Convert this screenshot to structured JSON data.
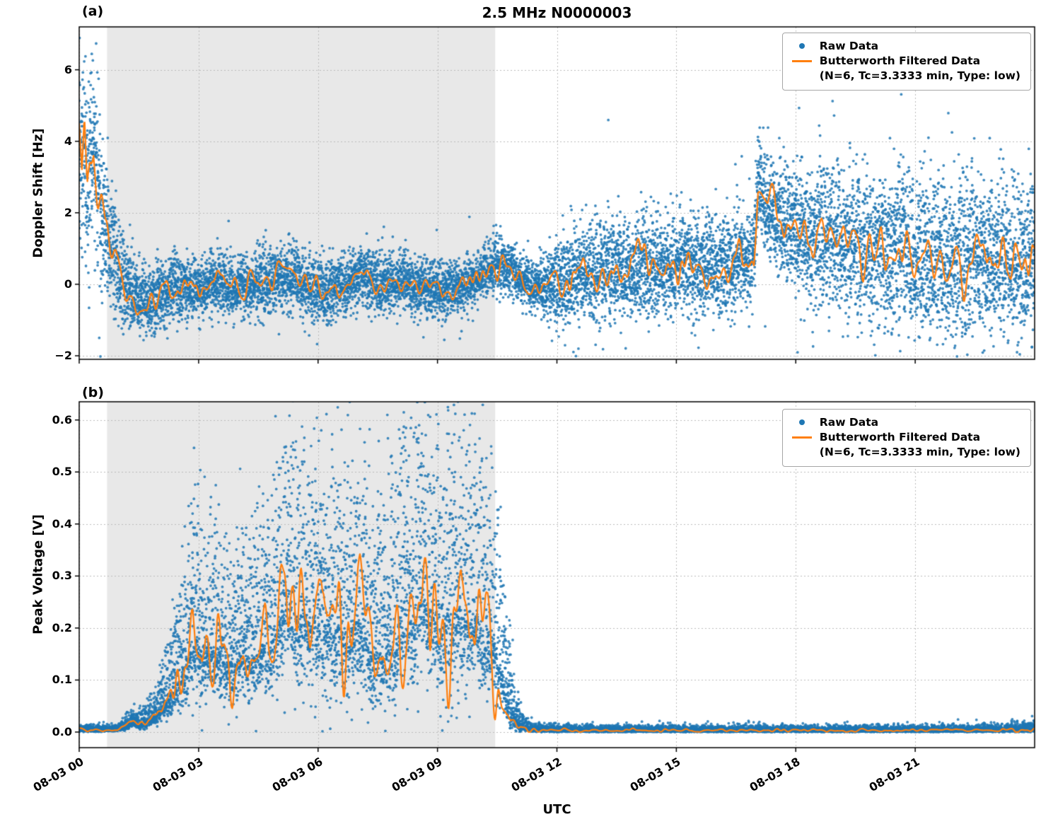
{
  "figure": {
    "title": "2.5 MHz N0000003",
    "xlabel": "UTC",
    "colors": {
      "raw": "#1f77b4",
      "filtered": "#ff7f0e",
      "shade": "#e8e8e8",
      "grid": "#bbbbbb",
      "spine": "#000000",
      "background": "#ffffff"
    },
    "legend": {
      "raw_label": "Raw Data",
      "filtered_label": "Butterworth Filtered Data",
      "filtered_sublabel": "(N=6, Tc=3.3333 min, Type: low)"
    },
    "x_axis": {
      "lim": [
        0,
        24
      ],
      "ticks": [
        0,
        3,
        6,
        9,
        12,
        15,
        18,
        21
      ],
      "tick_labels": [
        "08-03 00",
        "08-03 03",
        "08-03 06",
        "08-03 09",
        "08-03 12",
        "08-03 15",
        "08-03 18",
        "08-03 21"
      ]
    }
  },
  "chart_data": [
    {
      "type": "scatter",
      "panel_label": "(a)",
      "ylabel": "Doppler Shift [Hz]",
      "ylim": [
        -2.1,
        7.2
      ],
      "yticks": [
        -2,
        0,
        2,
        4,
        6
      ],
      "ytick_labels": [
        "−2",
        "0",
        "2",
        "4",
        "6"
      ],
      "shaded_x_range": [
        0.7,
        10.45
      ],
      "series": [
        {
          "name": "Raw Data",
          "style": "scatter"
        },
        {
          "name": "Butterworth Filtered Data (N=6, Tc=3.3333 min, Type: low)",
          "style": "line"
        }
      ],
      "n_points": 12000,
      "skew_up": 1.05,
      "skew_down": 1.0,
      "outlier_prob": 0.009,
      "outlier_scale": 2.2,
      "clip_min": null,
      "line_noise": 1.2,
      "filtered_mean_breakpoints": [
        [
          0.0,
          4.2
        ],
        [
          0.07,
          2.8
        ],
        [
          0.13,
          4.3
        ],
        [
          0.2,
          2.4
        ],
        [
          0.28,
          3.2
        ],
        [
          0.36,
          3.9
        ],
        [
          0.45,
          2.6
        ],
        [
          0.55,
          2.1
        ],
        [
          0.65,
          1.5
        ],
        [
          0.8,
          1.1
        ],
        [
          0.95,
          0.6
        ],
        [
          1.1,
          0.2
        ],
        [
          1.3,
          -0.15
        ],
        [
          1.5,
          -0.35
        ],
        [
          1.7,
          -0.5
        ],
        [
          1.9,
          -0.45
        ],
        [
          2.1,
          -0.25
        ],
        [
          2.4,
          -0.15
        ],
        [
          2.7,
          -0.1
        ],
        [
          3.0,
          -0.15
        ],
        [
          3.3,
          -0.05
        ],
        [
          3.6,
          0.0
        ],
        [
          3.9,
          -0.1
        ],
        [
          4.2,
          -0.05
        ],
        [
          4.5,
          0.05
        ],
        [
          4.8,
          0.0
        ],
        [
          5.1,
          0.15
        ],
        [
          5.35,
          0.3
        ],
        [
          5.6,
          0.05
        ],
        [
          5.85,
          -0.2
        ],
        [
          6.1,
          -0.3
        ],
        [
          6.35,
          -0.2
        ],
        [
          6.6,
          -0.05
        ],
        [
          6.85,
          0.15
        ],
        [
          7.1,
          0.25
        ],
        [
          7.35,
          0.1
        ],
        [
          7.6,
          -0.05
        ],
        [
          7.85,
          0.05
        ],
        [
          8.1,
          0.1
        ],
        [
          8.35,
          0.0
        ],
        [
          8.6,
          -0.1
        ],
        [
          8.85,
          -0.05
        ],
        [
          9.1,
          -0.2
        ],
        [
          9.35,
          -0.15
        ],
        [
          9.6,
          -0.05
        ],
        [
          9.85,
          0.05
        ],
        [
          10.1,
          0.25
        ],
        [
          10.4,
          0.55
        ],
        [
          10.65,
          0.6
        ],
        [
          10.9,
          0.35
        ],
        [
          11.1,
          0.1
        ],
        [
          11.4,
          -0.05
        ],
        [
          11.7,
          -0.1
        ],
        [
          12.0,
          0.05
        ],
        [
          12.3,
          0.2
        ],
        [
          12.6,
          0.3
        ],
        [
          12.9,
          0.25
        ],
        [
          13.2,
          0.4
        ],
        [
          13.5,
          0.45
        ],
        [
          13.8,
          0.35
        ],
        [
          14.1,
          0.45
        ],
        [
          14.4,
          0.5
        ],
        [
          14.7,
          0.4
        ],
        [
          15.0,
          0.5
        ],
        [
          15.3,
          0.55
        ],
        [
          15.6,
          0.5
        ],
        [
          15.9,
          0.6
        ],
        [
          16.2,
          0.55
        ],
        [
          16.5,
          0.6
        ],
        [
          16.8,
          0.65
        ],
        [
          16.95,
          0.9
        ],
        [
          17.05,
          2.9
        ],
        [
          17.2,
          2.35
        ],
        [
          17.4,
          2.0
        ],
        [
          17.7,
          1.7
        ],
        [
          18.0,
          1.55
        ],
        [
          18.3,
          1.35
        ],
        [
          18.6,
          1.3
        ],
        [
          18.9,
          1.5
        ],
        [
          19.2,
          1.3
        ],
        [
          19.5,
          1.15
        ],
        [
          19.8,
          1.0
        ],
        [
          20.1,
          0.95
        ],
        [
          20.4,
          0.85
        ],
        [
          20.7,
          0.9
        ],
        [
          21.0,
          0.8
        ],
        [
          21.3,
          0.85
        ],
        [
          21.6,
          0.75
        ],
        [
          21.9,
          0.8
        ],
        [
          22.2,
          0.7
        ],
        [
          22.5,
          0.75
        ],
        [
          22.8,
          0.65
        ],
        [
          23.1,
          0.75
        ],
        [
          23.4,
          0.6
        ],
        [
          23.7,
          0.65
        ],
        [
          24.0,
          0.5
        ]
      ],
      "scatter_spread_breakpoints": [
        [
          0.0,
          1.3
        ],
        [
          0.3,
          1.2
        ],
        [
          0.6,
          1.1
        ],
        [
          0.9,
          0.8
        ],
        [
          1.2,
          0.6
        ],
        [
          1.5,
          0.5
        ],
        [
          1.8,
          0.5
        ],
        [
          2.2,
          0.45
        ],
        [
          3.0,
          0.4
        ],
        [
          4.0,
          0.42
        ],
        [
          5.0,
          0.45
        ],
        [
          5.5,
          0.5
        ],
        [
          6.0,
          0.45
        ],
        [
          7.0,
          0.42
        ],
        [
          8.0,
          0.4
        ],
        [
          9.0,
          0.38
        ],
        [
          10.0,
          0.35
        ],
        [
          10.5,
          0.38
        ],
        [
          11.0,
          0.35
        ],
        [
          11.5,
          0.35
        ],
        [
          12.0,
          0.55
        ],
        [
          12.5,
          0.65
        ],
        [
          13.0,
          0.7
        ],
        [
          14.0,
          0.7
        ],
        [
          15.0,
          0.68
        ],
        [
          16.0,
          0.7
        ],
        [
          16.8,
          0.6
        ],
        [
          17.1,
          0.6
        ],
        [
          17.4,
          0.75
        ],
        [
          18.0,
          0.9
        ],
        [
          19.0,
          1.0
        ],
        [
          20.0,
          1.05
        ],
        [
          21.0,
          1.05
        ],
        [
          22.0,
          1.1
        ],
        [
          23.0,
          1.1
        ],
        [
          24.0,
          1.1
        ]
      ]
    },
    {
      "type": "scatter",
      "panel_label": "(b)",
      "ylabel": "Peak Voltage [V]",
      "ylim": [
        -0.03,
        0.635
      ],
      "yticks": [
        0.0,
        0.1,
        0.2,
        0.3,
        0.4,
        0.5,
        0.6
      ],
      "ytick_labels": [
        "0.0",
        "0.1",
        "0.2",
        "0.3",
        "0.4",
        "0.5",
        "0.6"
      ],
      "shaded_x_range": [
        0.7,
        10.45
      ],
      "series": [
        {
          "name": "Raw Data",
          "style": "scatter"
        },
        {
          "name": "Butterworth Filtered Data (N=6, Tc=3.3333 min, Type: low)",
          "style": "line"
        }
      ],
      "n_points": 12000,
      "skew_up": 1.7,
      "skew_down": 0.55,
      "outlier_prob": 0.008,
      "outlier_scale": 1.6,
      "clip_min": 0.0,
      "line_noise": 1.4,
      "filtered_mean_breakpoints": [
        [
          0.0,
          0.004
        ],
        [
          0.8,
          0.004
        ],
        [
          1.0,
          0.006
        ],
        [
          1.2,
          0.012
        ],
        [
          1.35,
          0.02
        ],
        [
          1.5,
          0.015
        ],
        [
          1.7,
          0.02
        ],
        [
          1.9,
          0.03
        ],
        [
          2.05,
          0.05
        ],
        [
          2.2,
          0.06
        ],
        [
          2.35,
          0.08
        ],
        [
          2.5,
          0.1
        ],
        [
          2.65,
          0.13
        ],
        [
          2.8,
          0.16
        ],
        [
          2.95,
          0.18
        ],
        [
          3.1,
          0.15
        ],
        [
          3.25,
          0.17
        ],
        [
          3.4,
          0.15
        ],
        [
          3.55,
          0.16
        ],
        [
          3.7,
          0.14
        ],
        [
          3.85,
          0.13
        ],
        [
          4.0,
          0.15
        ],
        [
          4.15,
          0.16
        ],
        [
          4.3,
          0.14
        ],
        [
          4.45,
          0.15
        ],
        [
          4.6,
          0.17
        ],
        [
          4.75,
          0.16
        ],
        [
          4.9,
          0.18
        ],
        [
          5.05,
          0.22
        ],
        [
          5.2,
          0.29
        ],
        [
          5.35,
          0.24
        ],
        [
          5.5,
          0.22
        ],
        [
          5.65,
          0.24
        ],
        [
          5.8,
          0.21
        ],
        [
          5.95,
          0.23
        ],
        [
          6.1,
          0.2
        ],
        [
          6.25,
          0.22
        ],
        [
          6.4,
          0.19
        ],
        [
          6.55,
          0.21
        ],
        [
          6.7,
          0.17
        ],
        [
          6.85,
          0.2
        ],
        [
          7.0,
          0.22
        ],
        [
          7.15,
          0.19
        ],
        [
          7.3,
          0.16
        ],
        [
          7.45,
          0.17
        ],
        [
          7.6,
          0.15
        ],
        [
          7.75,
          0.18
        ],
        [
          7.9,
          0.16
        ],
        [
          8.05,
          0.22
        ],
        [
          8.2,
          0.26
        ],
        [
          8.35,
          0.2
        ],
        [
          8.5,
          0.24
        ],
        [
          8.65,
          0.27
        ],
        [
          8.8,
          0.22
        ],
        [
          8.95,
          0.25
        ],
        [
          9.1,
          0.19
        ],
        [
          9.25,
          0.24
        ],
        [
          9.4,
          0.22
        ],
        [
          9.55,
          0.25
        ],
        [
          9.7,
          0.21
        ],
        [
          9.85,
          0.23
        ],
        [
          10.0,
          0.22
        ],
        [
          10.15,
          0.21
        ],
        [
          10.3,
          0.2
        ],
        [
          10.45,
          0.16
        ],
        [
          10.6,
          0.12
        ],
        [
          10.75,
          0.07
        ],
        [
          10.9,
          0.035
        ],
        [
          11.05,
          0.015
        ],
        [
          11.2,
          0.008
        ],
        [
          11.4,
          0.005
        ],
        [
          11.7,
          0.004
        ],
        [
          12.0,
          0.0035
        ],
        [
          13.0,
          0.003
        ],
        [
          15.0,
          0.003
        ],
        [
          17.0,
          0.003
        ],
        [
          19.0,
          0.003
        ],
        [
          21.0,
          0.003
        ],
        [
          22.5,
          0.0035
        ],
        [
          23.3,
          0.004
        ],
        [
          23.7,
          0.005
        ],
        [
          24.0,
          0.006
        ]
      ],
      "scatter_spread_breakpoints": [
        [
          0.0,
          0.003
        ],
        [
          0.9,
          0.003
        ],
        [
          1.2,
          0.006
        ],
        [
          1.5,
          0.008
        ],
        [
          1.8,
          0.012
        ],
        [
          2.1,
          0.025
        ],
        [
          2.4,
          0.045
        ],
        [
          2.7,
          0.07
        ],
        [
          3.0,
          0.09
        ],
        [
          3.3,
          0.08
        ],
        [
          3.6,
          0.075
        ],
        [
          3.9,
          0.07
        ],
        [
          4.2,
          0.075
        ],
        [
          4.5,
          0.08
        ],
        [
          4.8,
          0.09
        ],
        [
          5.1,
          0.11
        ],
        [
          5.4,
          0.12
        ],
        [
          5.7,
          0.11
        ],
        [
          6.0,
          0.115
        ],
        [
          6.3,
          0.11
        ],
        [
          6.6,
          0.1
        ],
        [
          6.9,
          0.1
        ],
        [
          7.2,
          0.1
        ],
        [
          7.5,
          0.095
        ],
        [
          7.8,
          0.1
        ],
        [
          8.1,
          0.115
        ],
        [
          8.4,
          0.12
        ],
        [
          8.7,
          0.125
        ],
        [
          9.0,
          0.12
        ],
        [
          9.3,
          0.125
        ],
        [
          9.6,
          0.12
        ],
        [
          9.9,
          0.12
        ],
        [
          10.2,
          0.11
        ],
        [
          10.45,
          0.09
        ],
        [
          10.7,
          0.05
        ],
        [
          10.95,
          0.02
        ],
        [
          11.2,
          0.006
        ],
        [
          11.5,
          0.004
        ],
        [
          12.0,
          0.003
        ],
        [
          14.0,
          0.003
        ],
        [
          18.0,
          0.003
        ],
        [
          22.0,
          0.003
        ],
        [
          23.5,
          0.004
        ],
        [
          24.0,
          0.005
        ]
      ]
    }
  ]
}
